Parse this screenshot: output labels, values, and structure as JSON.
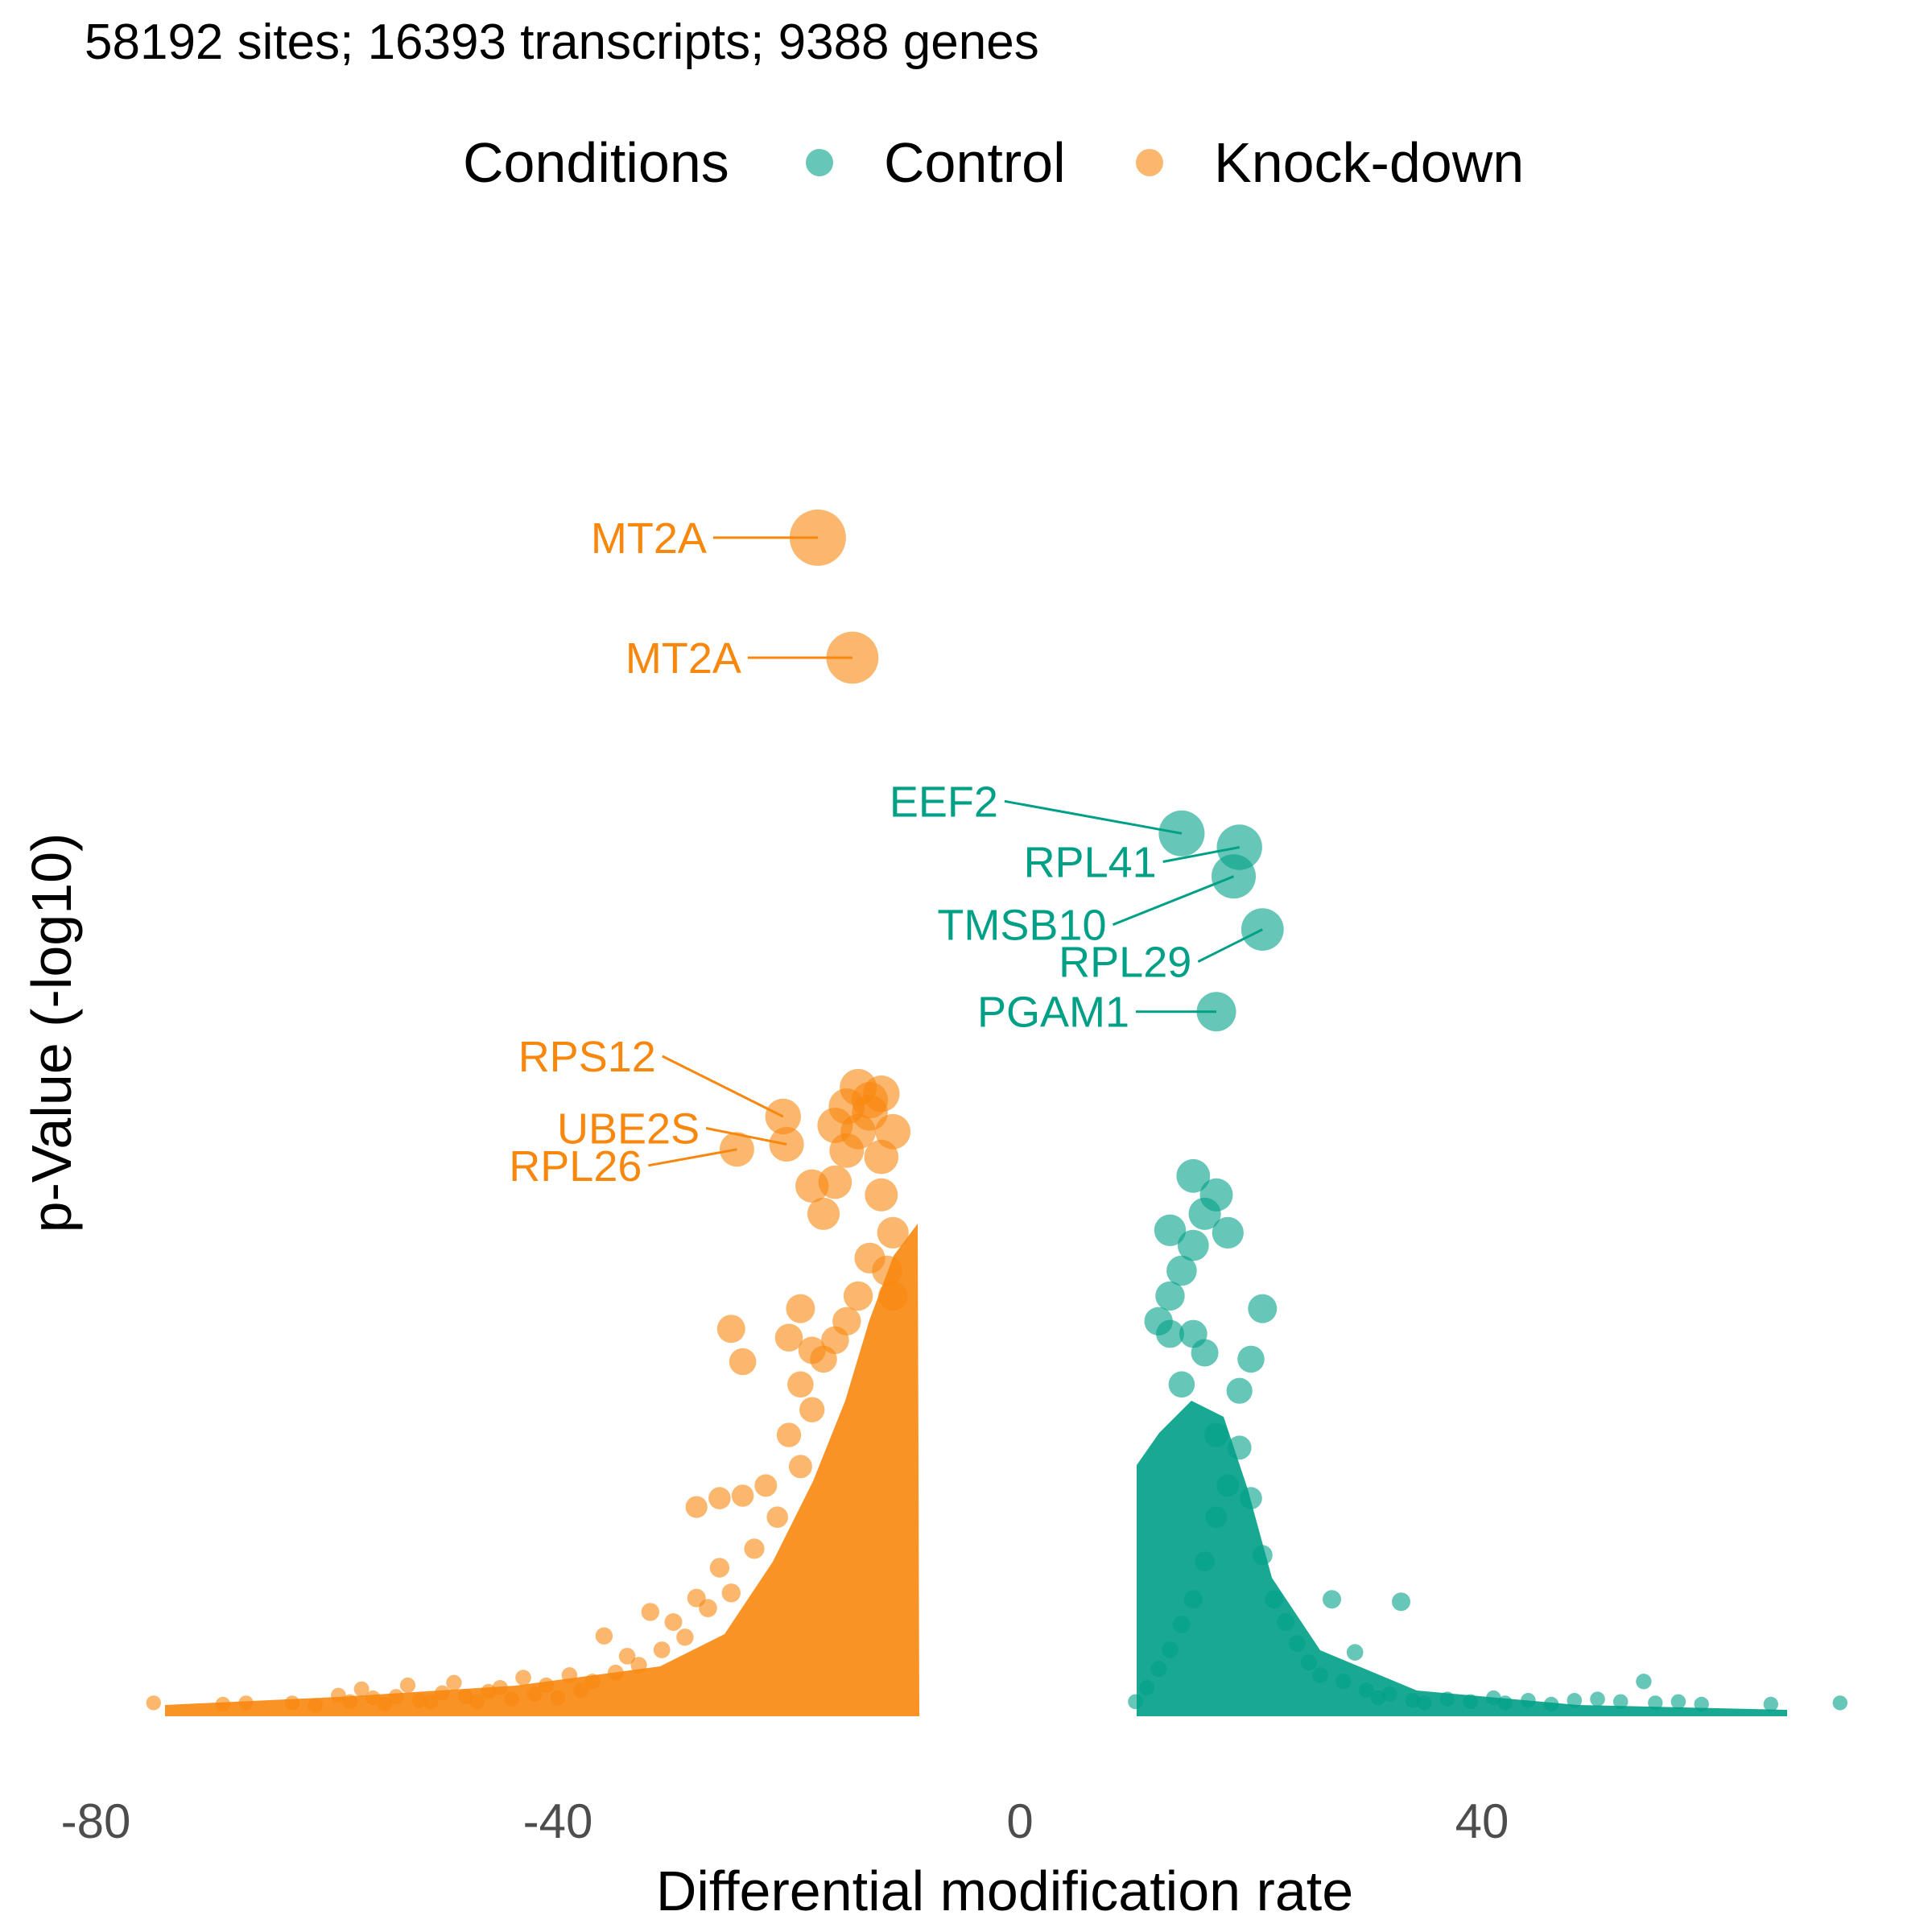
{
  "chart_data": {
    "type": "scatter",
    "subtitle": "58192 sites; 16393 transcripts; 9388 genes",
    "xlabel": "Differential modification rate",
    "ylabel": "p-Value (-log10)",
    "xlim": [
      -82,
      73
    ],
    "x_ticks": [
      -80,
      -40,
      0,
      40
    ],
    "x_tick_labels": [
      "-80",
      "-40",
      "0",
      "40"
    ],
    "ylim": [
      0,
      100
    ],
    "y_ticks_shown": false,
    "grid": false,
    "legend": {
      "title": "Conditions",
      "position": "top",
      "entries": [
        "Control",
        "Knock-down"
      ]
    },
    "colors": {
      "Control": "#00a087",
      "Knock-down": "#f8870e"
    },
    "series": [
      {
        "name": "Knock-down",
        "points": [
          [
            -75,
            0.8
          ],
          [
            -69,
            0.7
          ],
          [
            -67,
            0.8
          ],
          [
            -63,
            0.8
          ],
          [
            -61,
            0.6
          ],
          [
            -59,
            1.4
          ],
          [
            -58,
            0.9
          ],
          [
            -57,
            1.9
          ],
          [
            -56,
            1.2
          ],
          [
            -55,
            0.7
          ],
          [
            -54,
            1.3
          ],
          [
            -53,
            2.2
          ],
          [
            -52,
            1.0
          ],
          [
            -51,
            0.9
          ],
          [
            -50,
            1.6
          ],
          [
            -49,
            2.4
          ],
          [
            -48,
            1.3
          ],
          [
            -47,
            0.9
          ],
          [
            -46,
            1.7
          ],
          [
            -45,
            2.0
          ],
          [
            -44,
            1.1
          ],
          [
            -43,
            2.8
          ],
          [
            -42,
            1.5
          ],
          [
            -41,
            2.2
          ],
          [
            -40,
            1.2
          ],
          [
            -39,
            3.0
          ],
          [
            -38,
            1.8
          ],
          [
            -37,
            2.5
          ],
          [
            -36,
            6.1
          ],
          [
            -35,
            3.2
          ],
          [
            -34,
            4.5
          ],
          [
            -33,
            3.8
          ],
          [
            -32,
            8.0
          ],
          [
            -31,
            5.0
          ],
          [
            -30,
            7.2
          ],
          [
            -29,
            6.0
          ],
          [
            -28,
            9.1
          ],
          [
            -27,
            8.3
          ],
          [
            -26,
            11.5
          ],
          [
            -25,
            9.5
          ],
          [
            -24,
            17.2
          ],
          [
            -23,
            13.0
          ],
          [
            -22,
            18.0
          ],
          [
            -21,
            15.5
          ],
          [
            -20,
            22.0
          ],
          [
            -19,
            19.5
          ],
          [
            -18,
            24.0
          ],
          [
            -17,
            28.0
          ],
          [
            -16,
            29.5
          ],
          [
            -15,
            31.0
          ],
          [
            -14,
            33.0
          ],
          [
            -13,
            36.0
          ],
          [
            -12,
            41.0
          ],
          [
            -11,
            38.0
          ],
          [
            -25,
            30.4
          ],
          [
            -24,
            27.8
          ],
          [
            -28,
            16.3
          ],
          [
            -26,
            17.0
          ],
          [
            -19,
            26.0
          ],
          [
            -18,
            28.7
          ],
          [
            -17,
            39.5
          ],
          [
            -16,
            42.0
          ],
          [
            -15,
            44.5
          ],
          [
            -14,
            46.0
          ],
          [
            -13,
            47.5
          ],
          [
            -12,
            49.0
          ],
          [
            -16,
            46.5
          ],
          [
            -15,
            48.0
          ],
          [
            -14,
            49.5
          ],
          [
            -13,
            48.5
          ],
          [
            -11,
            46.0
          ],
          [
            -12,
            44.0
          ],
          [
            -18,
            41.7
          ],
          [
            -20,
            29.7
          ],
          [
            -19,
            32.0
          ],
          [
            -11.5,
            35.0
          ],
          [
            -11,
            33.0
          ]
        ],
        "labeled_points": [
          {
            "label": "MT2A",
            "x": -17.5,
            "y": 93.0
          },
          {
            "label": "MT2A",
            "x": -14.5,
            "y": 83.5
          },
          {
            "label": "RPS12",
            "x": -20.5,
            "y": 47.2
          },
          {
            "label": "UBE2S",
            "x": -20.2,
            "y": 45.0
          },
          {
            "label": "RPL26",
            "x": -24.5,
            "y": 44.6
          }
        ]
      },
      {
        "name": "Control",
        "points": [
          [
            10,
            0.9
          ],
          [
            11,
            2.0
          ],
          [
            12,
            3.5
          ],
          [
            13,
            5.0
          ],
          [
            14,
            7.0
          ],
          [
            15,
            9.0
          ],
          [
            16,
            12.0
          ],
          [
            17,
            15.5
          ],
          [
            18,
            18.0
          ],
          [
            19,
            21.0
          ],
          [
            20,
            17.0
          ],
          [
            21,
            12.5
          ],
          [
            22,
            9.0
          ],
          [
            23,
            7.2
          ],
          [
            24,
            5.5
          ],
          [
            25,
            4.0
          ],
          [
            26,
            3.0
          ],
          [
            27,
            9.0
          ],
          [
            28,
            2.5
          ],
          [
            29,
            4.8
          ],
          [
            30,
            1.8
          ],
          [
            31,
            1.2
          ],
          [
            32,
            1.5
          ],
          [
            33,
            8.8
          ],
          [
            34,
            1.0
          ],
          [
            35,
            0.8
          ],
          [
            37,
            1.1
          ],
          [
            39,
            0.9
          ],
          [
            41,
            1.2
          ],
          [
            42,
            0.8
          ],
          [
            44,
            1.0
          ],
          [
            46,
            0.7
          ],
          [
            48,
            1.0
          ],
          [
            50,
            1.1
          ],
          [
            52,
            0.9
          ],
          [
            54,
            2.5
          ],
          [
            55,
            0.8
          ],
          [
            57,
            0.9
          ],
          [
            59,
            0.7
          ],
          [
            65,
            0.7
          ],
          [
            71,
            0.8
          ],
          [
            12,
            31.0
          ],
          [
            13,
            33.0
          ],
          [
            14,
            35.0
          ],
          [
            15,
            37.0
          ],
          [
            16,
            39.5
          ],
          [
            17,
            41.0
          ],
          [
            13,
            38.2
          ],
          [
            15,
            42.5
          ],
          [
            18,
            38.0
          ],
          [
            20,
            28.0
          ],
          [
            16,
            28.5
          ],
          [
            19,
            25.5
          ],
          [
            14,
            26.0
          ],
          [
            13,
            30.0
          ],
          [
            21,
            32.0
          ],
          [
            17,
            22.0
          ],
          [
            15,
            30.0
          ]
        ],
        "labeled_points": [
          {
            "label": "EEF2",
            "x": 14.0,
            "y": 69.6
          },
          {
            "label": "RPL41",
            "x": 19.0,
            "y": 68.5
          },
          {
            "label": "TMSB10",
            "x": 18.5,
            "y": 66.2
          },
          {
            "label": "RPL29",
            "x": 21.0,
            "y": 62.0
          },
          {
            "label": "PGAM1",
            "x": 17.0,
            "y": 55.5
          }
        ]
      }
    ]
  }
}
